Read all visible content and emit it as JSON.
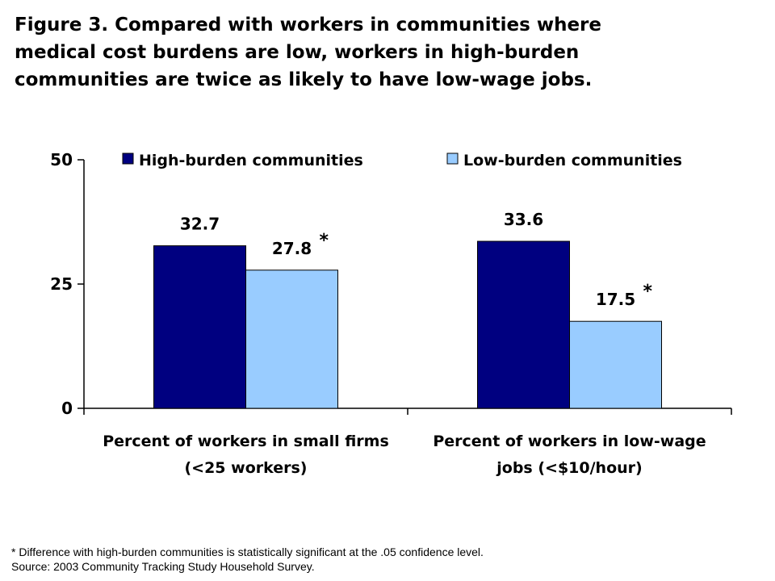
{
  "title_lines": [
    "Figure 3. Compared with workers in communities where",
    "medical cost burdens are low, workers in high-burden",
    "communities are twice as likely to have low-wage jobs."
  ],
  "footnote": "* Difference with high-burden communities is statistically significant at the .05 confidence level.",
  "source": "Source: 2003 Community Tracking Study Household Survey.",
  "chart_data": {
    "type": "bar",
    "categories": [
      [
        "Percent of workers in small firms",
        "(<25 workers)"
      ],
      [
        "Percent of workers in low-wage",
        "jobs (<$10/hour)"
      ]
    ],
    "series": [
      {
        "name": "High-burden communities",
        "values": [
          32.7,
          33.6
        ],
        "labels": [
          "32.7",
          "33.6"
        ],
        "color": "#000080",
        "marker": [
          "",
          ""
        ]
      },
      {
        "name": "Low-burden communities",
        "values": [
          27.8,
          17.5
        ],
        "labels": [
          "27.8",
          "17.5"
        ],
        "color": "#99CCFF",
        "marker": [
          "*",
          "*"
        ]
      }
    ],
    "ylim": [
      0,
      50
    ],
    "yticks": [
      0,
      25,
      50
    ],
    "legend": "top",
    "grid": false
  }
}
